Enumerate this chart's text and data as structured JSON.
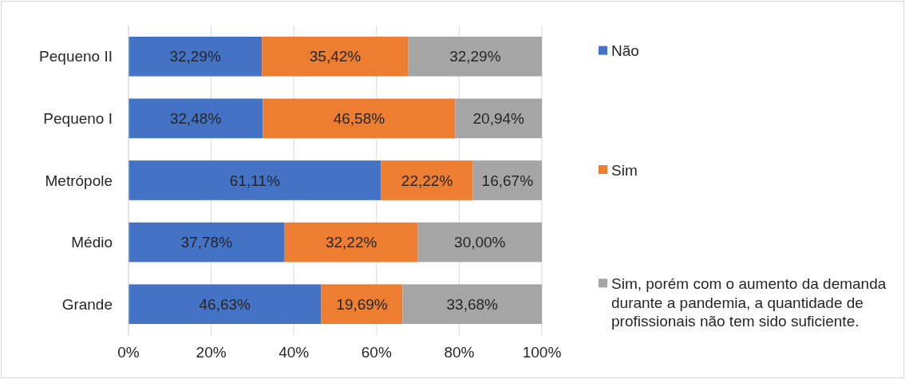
{
  "chart_data": {
    "type": "bar",
    "orientation": "horizontal",
    "stacked": true,
    "categories": [
      "Pequeno II",
      "Pequeno I",
      "Metrópole",
      "Médio",
      "Grande"
    ],
    "series": [
      {
        "name": "Não",
        "color": "#4472c4",
        "values": [
          32.29,
          32.48,
          61.11,
          37.78,
          46.63
        ],
        "value_labels": [
          "32,29%",
          "32,48%",
          "61,11%",
          "37,78%",
          "46,63%"
        ]
      },
      {
        "name": "Sim",
        "color": "#ed7d31",
        "values": [
          35.42,
          46.58,
          22.22,
          32.22,
          19.69
        ],
        "value_labels": [
          "35,42%",
          "46,58%",
          "22,22%",
          "32,22%",
          "19,69%"
        ]
      },
      {
        "name": "Sim, porém com o aumento da demanda durante a pandemia, a quantidade de profissionais não tem sido suficiente.",
        "color": "#a5a5a5",
        "values": [
          32.29,
          20.94,
          16.67,
          30.0,
          33.68
        ],
        "value_labels": [
          "32,29%",
          "20,94%",
          "16,67%",
          "30,00%",
          "33,68%"
        ]
      }
    ],
    "xlim": [
      0,
      100
    ],
    "xticks": [
      {
        "value": 0,
        "label": "0%"
      },
      {
        "value": 20,
        "label": "20%"
      },
      {
        "value": 40,
        "label": "40%"
      },
      {
        "value": 60,
        "label": "60%"
      },
      {
        "value": 80,
        "label": "80%"
      },
      {
        "value": 100,
        "label": "100%"
      }
    ],
    "grid": "x",
    "legend": "right"
  }
}
